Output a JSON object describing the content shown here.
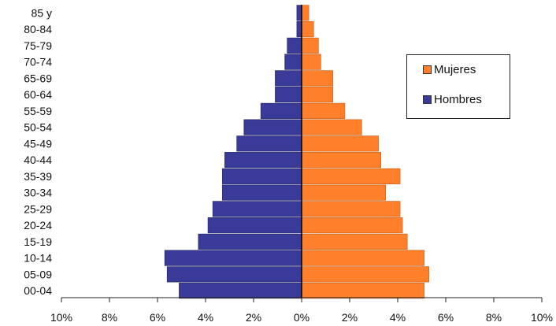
{
  "chart_data": {
    "type": "bar",
    "orientation": "horizontal",
    "stacked_divergent": true,
    "categories": [
      "85 y",
      "80-84",
      "75-79",
      "70-74",
      "65-69",
      "60-64",
      "55-59",
      "50-54",
      "45-49",
      "40-44",
      "35-39",
      "30-34",
      "25-29",
      "20-24",
      "15-19",
      "10-14",
      "05-09",
      "00-04"
    ],
    "series": [
      {
        "name": "Mujeres",
        "color": "#ff7f2a",
        "values": [
          0.3,
          0.5,
          0.7,
          0.8,
          1.3,
          1.3,
          1.8,
          2.5,
          3.2,
          3.3,
          4.1,
          3.5,
          4.1,
          4.2,
          4.4,
          5.1,
          5.3,
          5.1
        ]
      },
      {
        "name": "Hombres",
        "color": "#3a3a99",
        "values": [
          0.2,
          0.2,
          0.6,
          0.7,
          1.1,
          1.1,
          1.7,
          2.4,
          2.7,
          3.2,
          3.3,
          3.3,
          3.7,
          3.9,
          4.3,
          5.7,
          5.6,
          5.1
        ]
      }
    ],
    "xlim": [
      -10,
      10
    ],
    "x_ticks": [
      "10%",
      "8%",
      "6%",
      "4%",
      "2%",
      "0%",
      "2%",
      "4%",
      "6%",
      "8%",
      "10%"
    ],
    "legend_placement": "right",
    "grid": false
  },
  "legend": {
    "items": [
      {
        "label": "Mujeres",
        "color": "#ff7f2a"
      },
      {
        "label": "Hombres",
        "color": "#3a3a99"
      }
    ]
  }
}
